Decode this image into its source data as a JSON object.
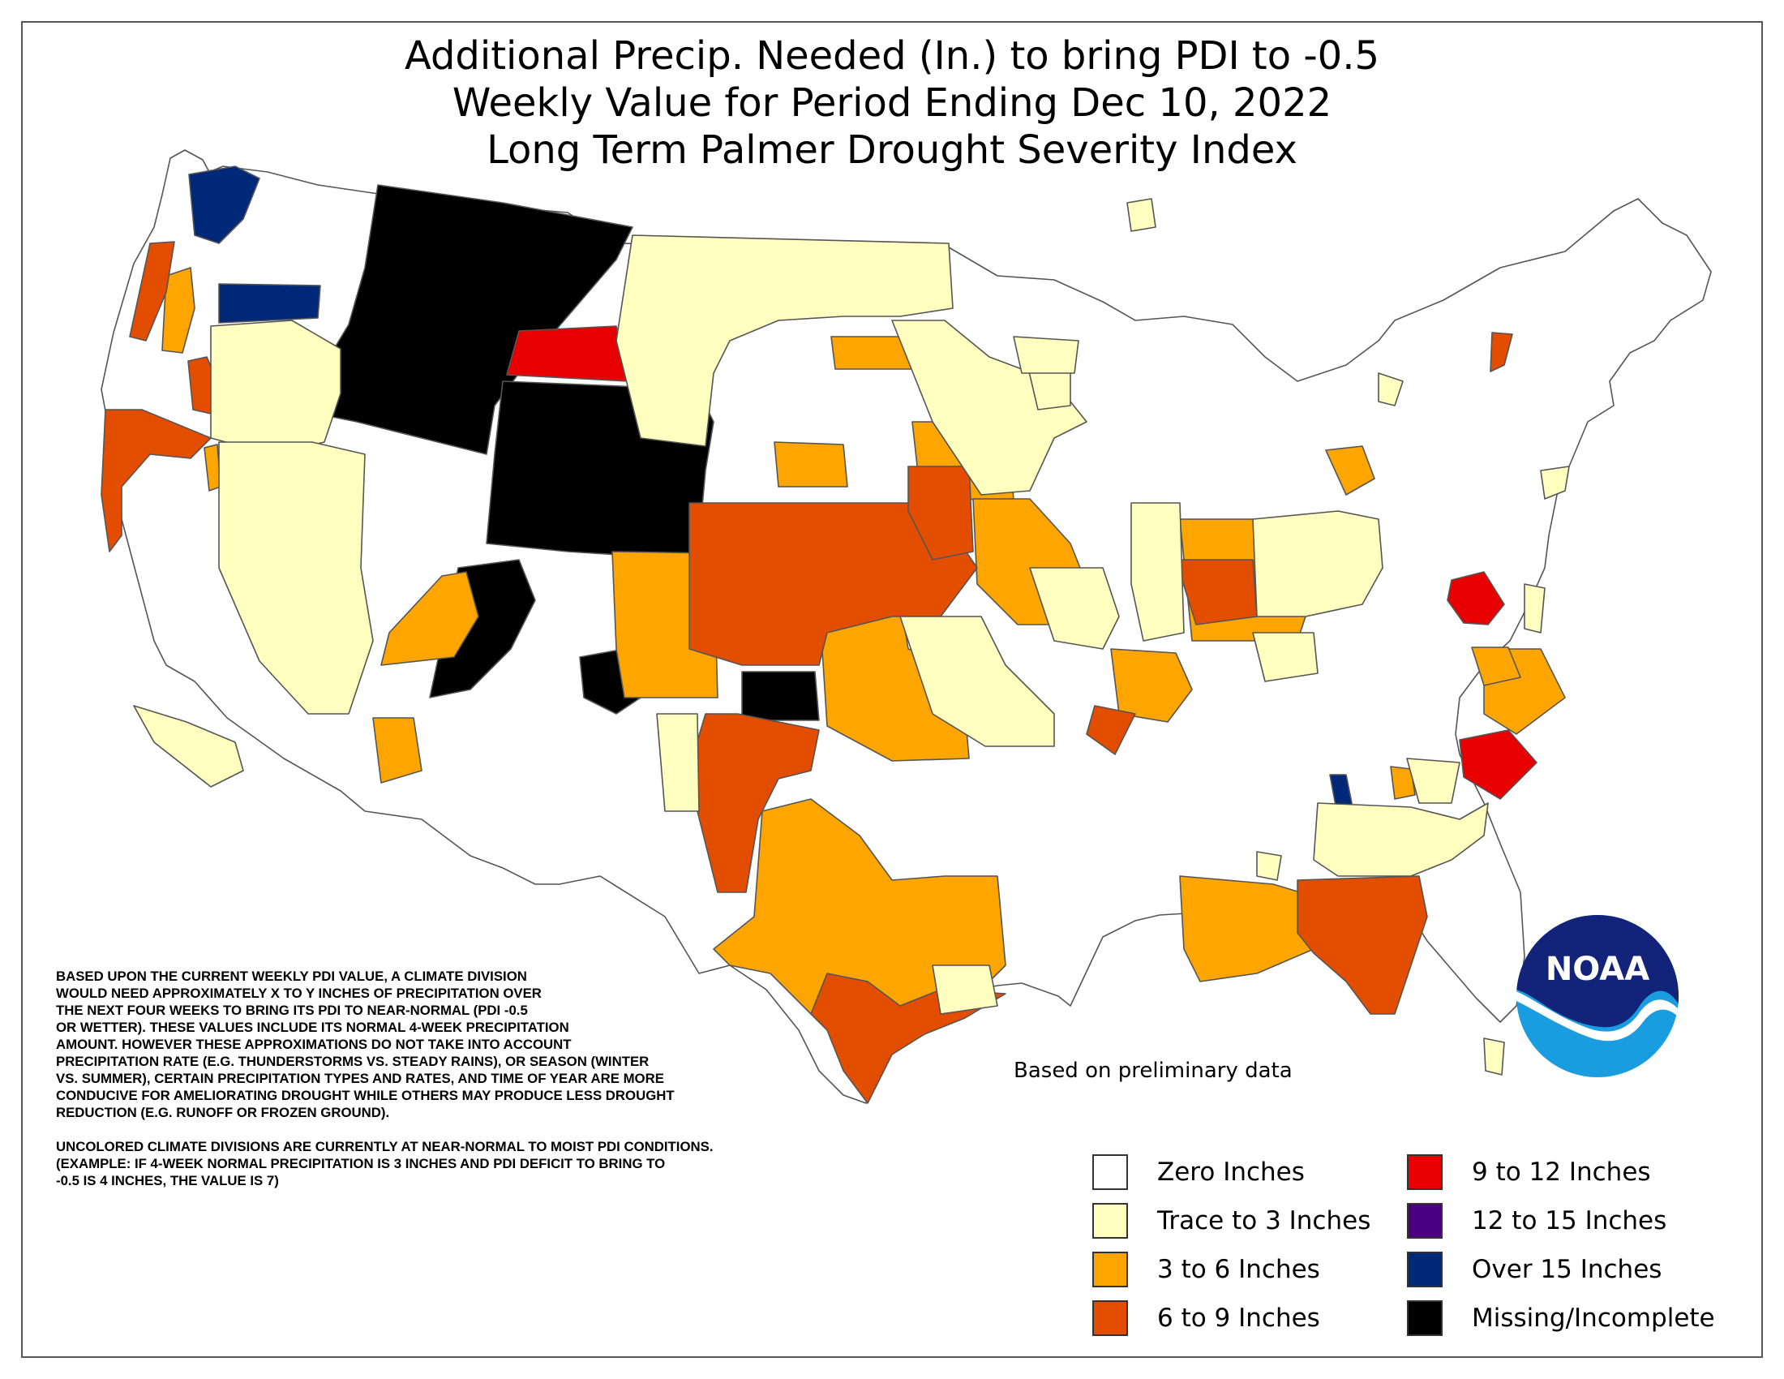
{
  "title_lines": [
    "Additional Precip. Needed (In.) to bring PDI to -0.5",
    "Weekly Value for Period Ending Dec 10, 2022",
    "Long Term Palmer Drought Severity Index"
  ],
  "note_paragraphs": [
    "BASED UPON THE CURRENT WEEKLY PDI VALUE, A CLIMATE DIVISION\nWOULD NEED APPROXIMATELY X TO Y INCHES OF PRECIPITATION OVER\nTHE NEXT FOUR WEEKS TO BRING ITS PDI TO NEAR-NORMAL (PDI -0.5\nOR WETTER). THESE VALUES INCLUDE ITS NORMAL 4-WEEK PRECIPITATION\nAMOUNT. HOWEVER THESE APPROXIMATIONS DO NOT TAKE INTO ACCOUNT\nPRECIPITATION RATE (E.G. THUNDERSTORMS VS. STEADY RAINS), OR SEASON (WINTER\nVS. SUMMER), CERTAIN PRECIPITATION TYPES AND RATES, AND TIME OF YEAR ARE MORE\nCONDUCIVE FOR AMELIORATING DROUGHT WHILE OTHERS MAY PRODUCE LESS DROUGHT\nREDUCTION (E.G. RUNOFF OR FROZEN GROUND).",
    "UNCOLORED CLIMATE DIVISIONS ARE CURRENTLY AT NEAR-NORMAL TO MOIST PDI CONDITIONS.\n(EXAMPLE: IF 4-WEEK NORMAL PRECIPITATION IS 3 INCHES AND PDI DEFICIT TO BRING TO\n-0.5 IS 4 INCHES, THE VALUE IS 7)"
  ],
  "preliminary_note": "Based on preliminary data",
  "legend": [
    {
      "label": "Zero Inches",
      "color": "#ffffff"
    },
    {
      "label": "Trace to 3 Inches",
      "color": "#ffffc0"
    },
    {
      "label": "3 to 6 Inches",
      "color": "#ffa500"
    },
    {
      "label": "6 to 9 Inches",
      "color": "#e24d00"
    },
    {
      "label": "9 to 12 Inches",
      "color": "#e80000"
    },
    {
      "label": "12 to 15 Inches",
      "color": "#4b0082"
    },
    {
      "label": "Over 15 Inches",
      "color": "#002878"
    },
    {
      "label": "Missing/Incomplete",
      "color": "#000000"
    }
  ],
  "logo_text": "NOAA",
  "map_colors": {
    "zero": "#ffffff",
    "trace": "#ffffc0",
    "three_six": "#ffa500",
    "six_nine": "#e24d00",
    "nine_twelve": "#e80000",
    "over_fifteen": "#002878",
    "missing": "#000000",
    "border": "#555555"
  }
}
